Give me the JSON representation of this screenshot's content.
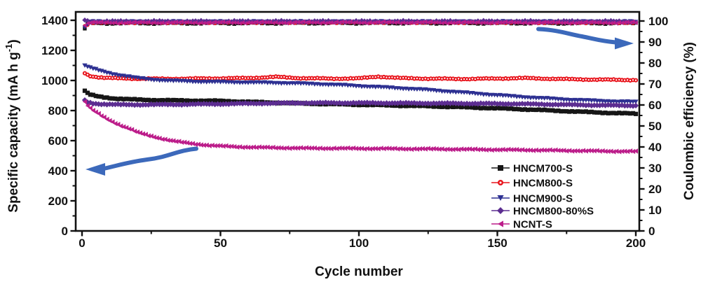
{
  "figure": {
    "xlabel": "Cycle number",
    "ylabel_left_main": "Specific capacity (mA h g",
    "ylabel_left_sup": "-1",
    "ylabel_left_close": ")",
    "ylabel_right": "Coulombic efficiency (%)"
  },
  "chart_data": {
    "type": "scatter",
    "title": "",
    "xlabel": "Cycle number",
    "ylabel_left": "Specific capacity (mA h g-1)",
    "ylabel_right": "Coulombic efficiency (%)",
    "x_range": [
      0,
      200
    ],
    "y_left_range": [
      0,
      1400
    ],
    "y_right_range": [
      0,
      100
    ],
    "x_ticks": [
      0,
      50,
      100,
      150,
      200
    ],
    "y_left_ticks": [
      0,
      200,
      400,
      600,
      800,
      1000,
      1200,
      1400
    ],
    "y_right_ticks": [
      0,
      10,
      20,
      30,
      40,
      50,
      60,
      70,
      80,
      90,
      100
    ],
    "x_minor_step": 25,
    "y_left_minor_step": 100,
    "y_right_minor_step": 5,
    "grid": false,
    "legend_position": "inside-bottom-right",
    "frame_color": "#111111",
    "series": [
      {
        "name": "HNCM700-S",
        "marker": "square",
        "color": "#161616",
        "capacity_vs_cycle": [
          [
            1,
            932
          ],
          [
            2,
            915
          ],
          [
            3,
            906
          ],
          [
            5,
            896
          ],
          [
            8,
            888
          ],
          [
            12,
            880
          ],
          [
            18,
            874
          ],
          [
            25,
            870
          ],
          [
            35,
            867
          ],
          [
            50,
            864
          ],
          [
            65,
            855
          ],
          [
            80,
            847
          ],
          [
            95,
            841
          ],
          [
            110,
            835
          ],
          [
            125,
            829
          ],
          [
            140,
            821
          ],
          [
            150,
            815
          ],
          [
            160,
            808
          ],
          [
            170,
            800
          ],
          [
            180,
            792
          ],
          [
            190,
            785
          ],
          [
            200,
            779
          ]
        ],
        "coulombic_efficiency_vs_cycle": [
          [
            1,
            96.2
          ],
          [
            2,
            98.6
          ],
          [
            4,
            99.0
          ],
          [
            50,
            99.0
          ],
          [
            100,
            99.1
          ],
          [
            200,
            99.0
          ]
        ]
      },
      {
        "name": "HNCM800-S",
        "marker": "circle-dot",
        "color": "#e8141c",
        "capacity_vs_cycle": [
          [
            1,
            1050
          ],
          [
            2,
            1038
          ],
          [
            3,
            1030
          ],
          [
            5,
            1024
          ],
          [
            8,
            1018
          ],
          [
            12,
            1015
          ],
          [
            20,
            1012
          ],
          [
            30,
            1011
          ],
          [
            45,
            1013
          ],
          [
            60,
            1016
          ],
          [
            70,
            1024
          ],
          [
            78,
            1016
          ],
          [
            90,
            1012
          ],
          [
            100,
            1014
          ],
          [
            107,
            1026
          ],
          [
            115,
            1016
          ],
          [
            125,
            1012
          ],
          [
            140,
            1010
          ],
          [
            150,
            1013
          ],
          [
            160,
            1016
          ],
          [
            172,
            1010
          ],
          [
            185,
            1006
          ],
          [
            200,
            1003
          ]
        ],
        "coulombic_efficiency_vs_cycle": [
          [
            1,
            97.6
          ],
          [
            3,
            99.3
          ],
          [
            100,
            99.4
          ],
          [
            200,
            99.3
          ]
        ]
      },
      {
        "name": "HNCM900-S",
        "marker": "triangle-down",
        "color": "#2e3192",
        "capacity_vs_cycle": [
          [
            1,
            1100
          ],
          [
            2,
            1090
          ],
          [
            4,
            1078
          ],
          [
            6,
            1066
          ],
          [
            8,
            1056
          ],
          [
            10,
            1047
          ],
          [
            13,
            1036
          ],
          [
            16,
            1027
          ],
          [
            20,
            1015
          ],
          [
            25,
            1005
          ],
          [
            32,
            997
          ],
          [
            42,
            991
          ],
          [
            55,
            987
          ],
          [
            70,
            983
          ],
          [
            85,
            975
          ],
          [
            95,
            967
          ],
          [
            105,
            957
          ],
          [
            115,
            947
          ],
          [
            125,
            936
          ],
          [
            135,
            922
          ],
          [
            145,
            908
          ],
          [
            155,
            894
          ],
          [
            165,
            882
          ],
          [
            175,
            872
          ],
          [
            185,
            864
          ],
          [
            195,
            858
          ],
          [
            200,
            856
          ]
        ],
        "coulombic_efficiency_vs_cycle": [
          [
            1,
            96.7
          ],
          [
            3,
            99.6
          ],
          [
            100,
            99.6
          ],
          [
            200,
            99.6
          ]
        ]
      },
      {
        "name": "HNCM800-80%S",
        "marker": "diamond",
        "color": "#5c2d91",
        "capacity_vs_cycle": [
          [
            1,
            868
          ],
          [
            2,
            856
          ],
          [
            4,
            848
          ],
          [
            7,
            843
          ],
          [
            12,
            840
          ],
          [
            20,
            839
          ],
          [
            35,
            841
          ],
          [
            50,
            844
          ],
          [
            65,
            848
          ],
          [
            80,
            851
          ],
          [
            100,
            851
          ],
          [
            120,
            849
          ],
          [
            140,
            847
          ],
          [
            155,
            845
          ],
          [
            170,
            841
          ],
          [
            185,
            836
          ],
          [
            200,
            833
          ]
        ],
        "coulombic_efficiency_vs_cycle": [
          [
            1,
            100.4
          ],
          [
            3,
            99.8
          ],
          [
            100,
            99.8
          ],
          [
            200,
            99.8
          ]
        ]
      },
      {
        "name": "NCNT-S",
        "marker": "triangle-left",
        "color": "#bc1d8a",
        "capacity_vs_cycle": [
          [
            1,
            858
          ],
          [
            2,
            834
          ],
          [
            3,
            816
          ],
          [
            4,
            800
          ],
          [
            5,
            789
          ],
          [
            7,
            764
          ],
          [
            9,
            742
          ],
          [
            11,
            724
          ],
          [
            14,
            700
          ],
          [
            17,
            680
          ],
          [
            20,
            655
          ],
          [
            24,
            633
          ],
          [
            28,
            616
          ],
          [
            32,
            601
          ],
          [
            36,
            589
          ],
          [
            40,
            579
          ],
          [
            45,
            570
          ],
          [
            50,
            564
          ],
          [
            56,
            559
          ],
          [
            62,
            556
          ],
          [
            70,
            553
          ],
          [
            80,
            550
          ],
          [
            90,
            549
          ],
          [
            100,
            548
          ],
          [
            115,
            546
          ],
          [
            130,
            544
          ],
          [
            145,
            541
          ],
          [
            160,
            538
          ],
          [
            175,
            534
          ],
          [
            190,
            530
          ],
          [
            200,
            528
          ]
        ],
        "coulombic_efficiency_vs_cycle": [
          [
            1,
            98.1
          ],
          [
            3,
            99.2
          ],
          [
            100,
            99.3
          ],
          [
            200,
            99.2
          ]
        ]
      }
    ],
    "annotations": [
      {
        "id": "capacity-arrow",
        "type": "arrow",
        "direction": "left",
        "color": "#3c69bb",
        "meaning": "points to left capacity axis",
        "at_cycle_from": 42,
        "at_cycle_to": 2,
        "at_value_left_axis": 420
      },
      {
        "id": "efficiency-arrow",
        "type": "arrow",
        "direction": "right",
        "color": "#3c69bb",
        "meaning": "points to right efficiency axis",
        "at_cycle_from": 165,
        "at_cycle_to": 200,
        "at_value_right_axis": 90
      }
    ]
  }
}
